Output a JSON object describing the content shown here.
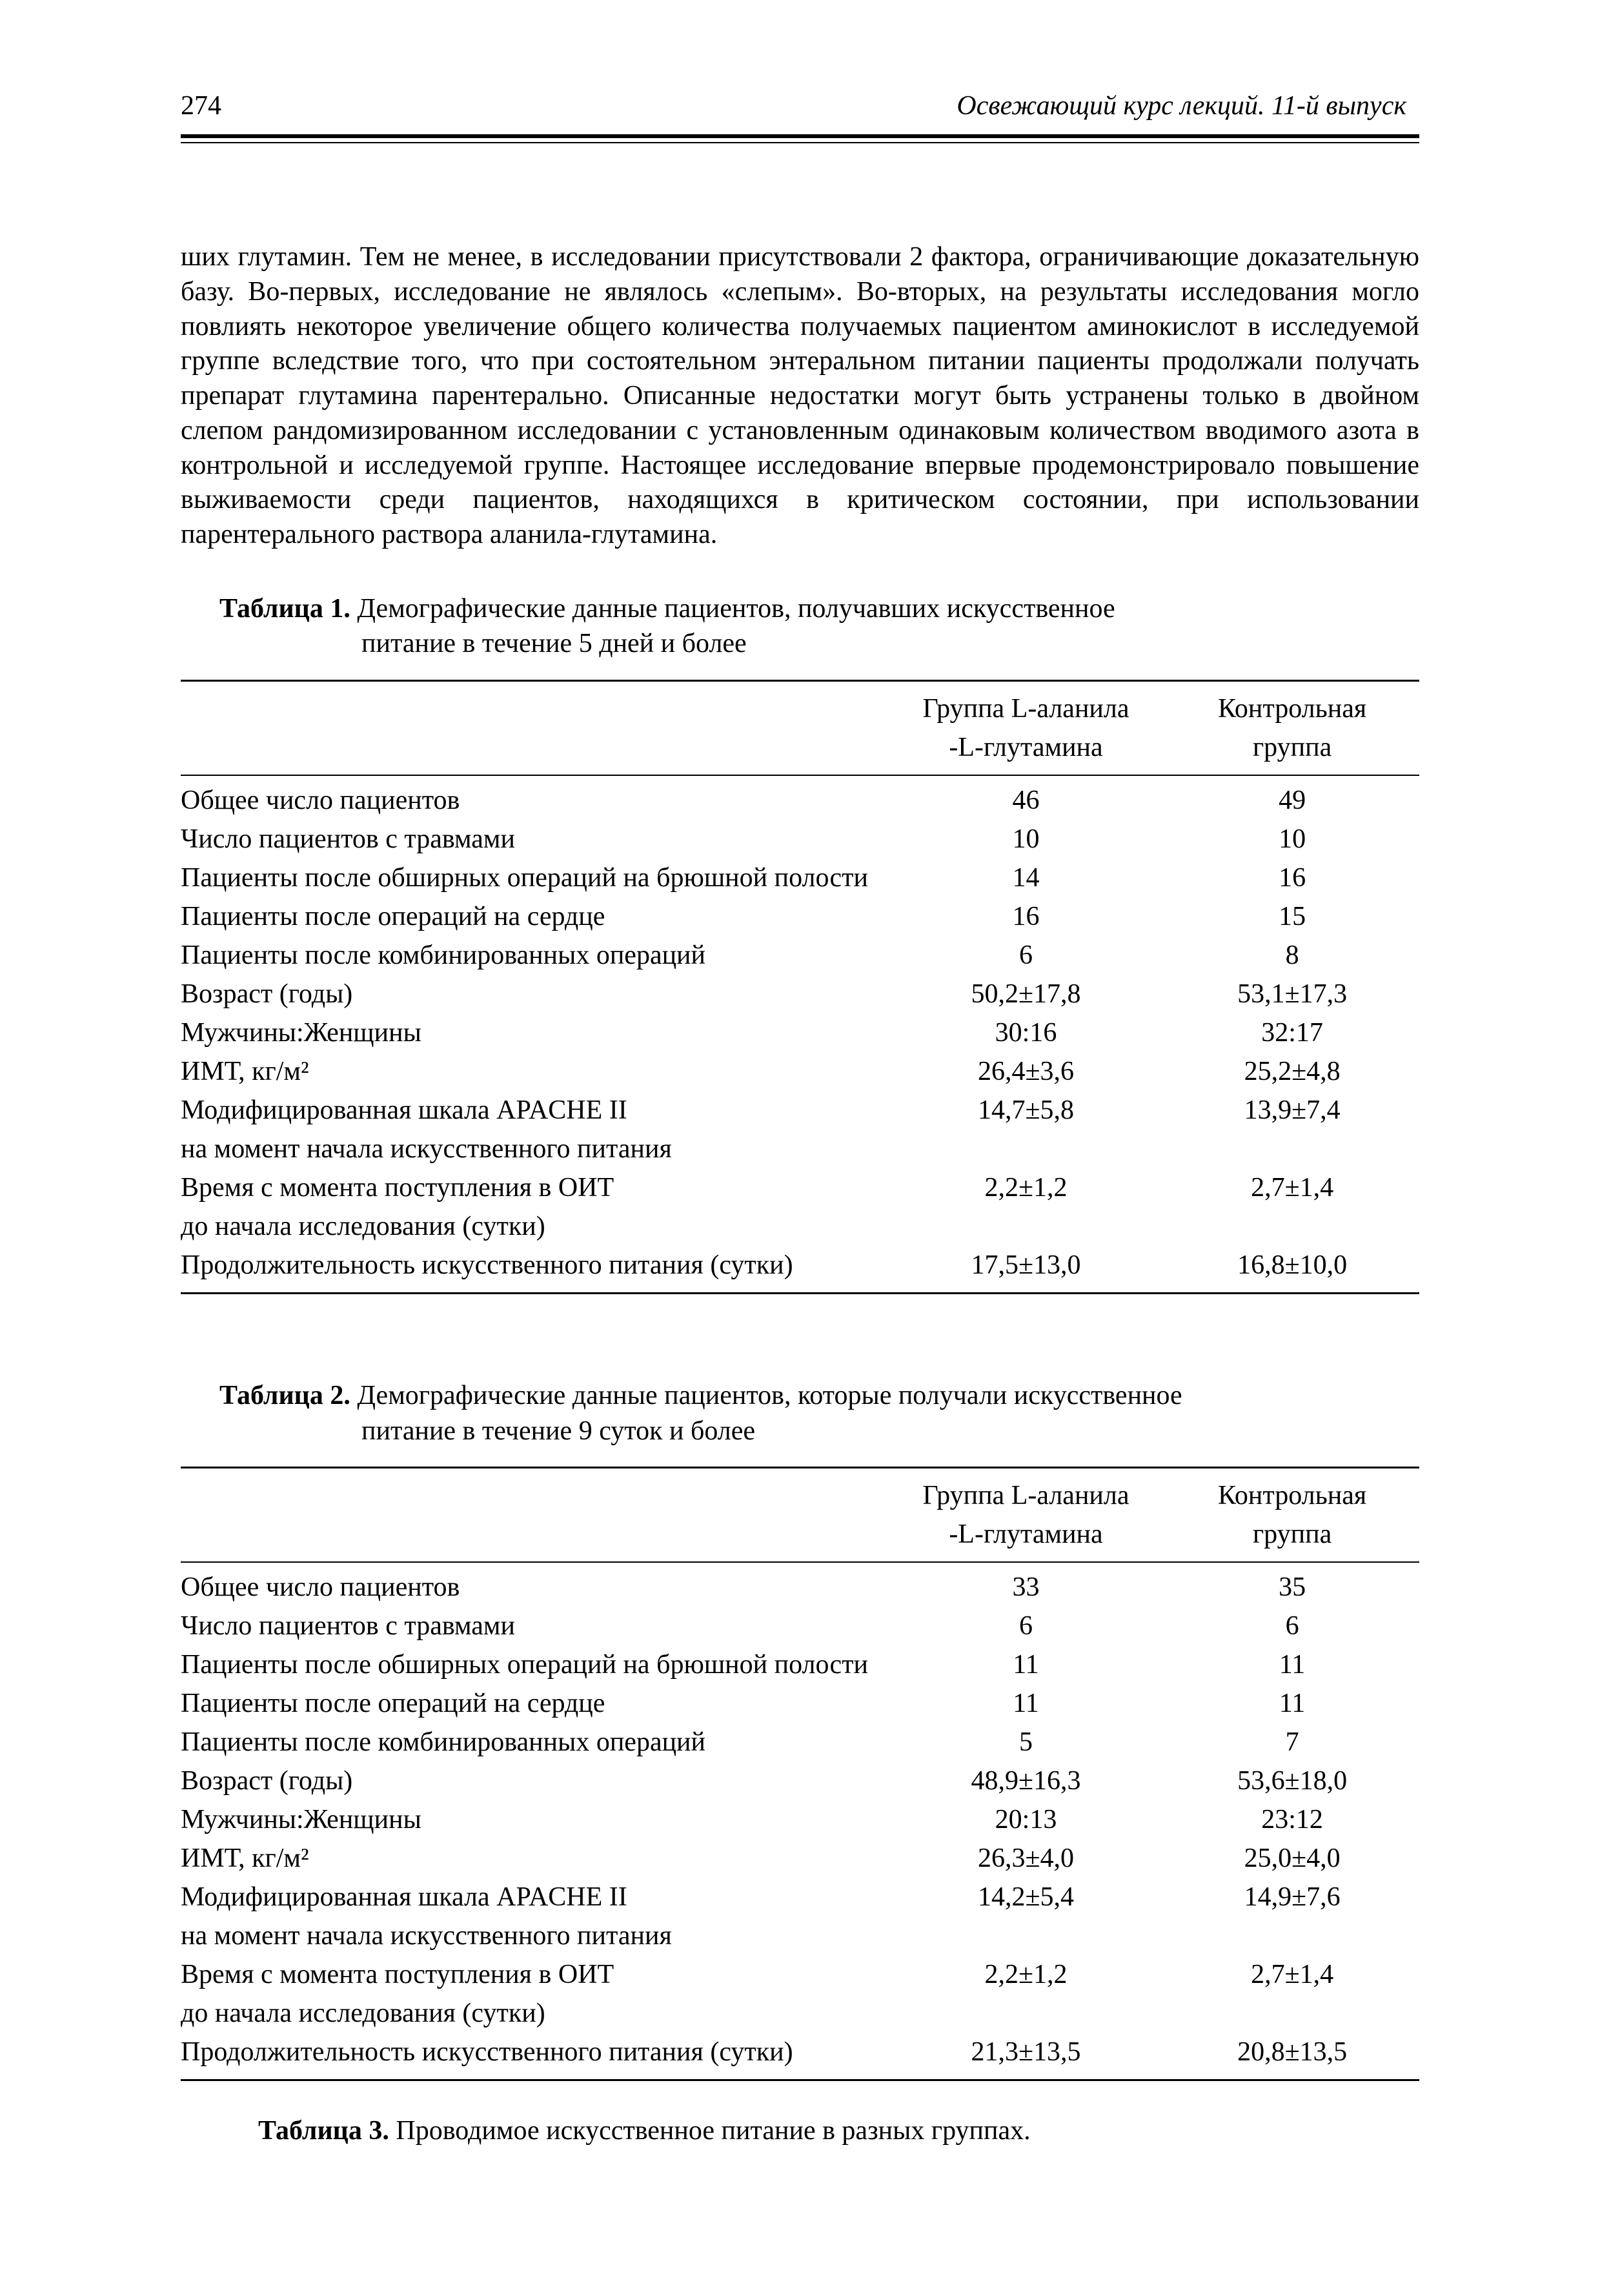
{
  "header": {
    "page_number": "274",
    "book_title": "Освежающий курс лекций.  11-й выпуск"
  },
  "paragraph": "ших глутамин. Тем не менее, в исследовании присутствовали 2 фактора, ограничивающие доказательную базу. Во-первых, исследование не являлось «слепым». Во-вторых, на результаты исследования могло повлиять некоторое увеличение общего количества получаемых пациентом аминокислот в исследуемой группе вследствие того, что при состоятельном энтеральном питании пациенты продолжали получать препарат глутамина парентерально. Описанные недостатки могут быть устранены только в двойном слепом рандомизированном исследовании с установленным одинаковым количеством вводимого азота в контрольной и исследуемой группе. Настоящее исследование впервые продемонстрировало повышение выживаемости среди пациентов, находящихся в критическом состоянии, при использовании парентерального раствора аланила-глутамина.",
  "table1": {
    "caption_bold": "Таблица 1.",
    "caption_rest": " Демографические данные пациентов, получавших искусственное",
    "caption_line2": "питание в течение 5 дней и более",
    "col_header1": "Группа L-аланила",
    "col_header1b": "-L-глутамина",
    "col_header2": "Контрольная",
    "col_header2b": "группа",
    "rows": [
      {
        "label": "Общее число пациентов",
        "v1": "46",
        "v2": "49"
      },
      {
        "label": "Число пациентов с травмами",
        "v1": "10",
        "v2": "10"
      },
      {
        "label": "Пациенты после обширных операций на брюшной полости",
        "v1": "14",
        "v2": "16"
      },
      {
        "label": "Пациенты после операций на сердце",
        "v1": "16",
        "v2": "15"
      },
      {
        "label": "Пациенты после комбинированных операций",
        "v1": "6",
        "v2": "8"
      },
      {
        "label": "Возраст (годы)",
        "v1": "50,2±17,8",
        "v2": "53,1±17,3"
      },
      {
        "label": "Мужчины:Женщины",
        "v1": "30:16",
        "v2": "32:17"
      },
      {
        "label": "ИМТ, кг/м²",
        "v1": "26,4±3,6",
        "v2": "25,2±4,8"
      },
      {
        "label": "Модифицированная шкала APACHE II",
        "v1": "14,7±5,8",
        "v2": "13,9±7,4"
      },
      {
        "label": "на момент начала искусственного питания",
        "v1": "",
        "v2": ""
      },
      {
        "label": "Время с момента поступления в ОИТ",
        "v1": "2,2±1,2",
        "v2": "2,7±1,4"
      },
      {
        "label": "до начала исследования (сутки)",
        "v1": "",
        "v2": ""
      },
      {
        "label": "Продолжительность искусственного питания (сутки)",
        "v1": "17,5±13,0",
        "v2": "16,8±10,0"
      }
    ]
  },
  "table2": {
    "caption_bold": "Таблица 2.",
    "caption_rest": " Демографические данные пациентов, которые получали искусственное",
    "caption_line2": "питание в течение 9 суток и более",
    "col_header1": "Группа L-аланила",
    "col_header1b": "-L-глутамина",
    "col_header2": "Контрольная",
    "col_header2b": "группа",
    "rows": [
      {
        "label": "Общее число пациентов",
        "v1": "33",
        "v2": "35"
      },
      {
        "label": "Число пациентов с травмами",
        "v1": "6",
        "v2": "6"
      },
      {
        "label": "Пациенты после обширных операций на брюшной полости",
        "v1": "11",
        "v2": "11"
      },
      {
        "label": "Пациенты после операций на сердце",
        "v1": "11",
        "v2": "11"
      },
      {
        "label": "Пациенты после комбинированных операций",
        "v1": "5",
        "v2": "7"
      },
      {
        "label": "Возраст (годы)",
        "v1": "48,9±16,3",
        "v2": "53,6±18,0"
      },
      {
        "label": "Мужчины:Женщины",
        "v1": "20:13",
        "v2": "23:12"
      },
      {
        "label": "ИМТ, кг/м²",
        "v1": "26,3±4,0",
        "v2": "25,0±4,0"
      },
      {
        "label": "Модифицированная шкала APACHE II",
        "v1": "14,2±5,4",
        "v2": "14,9±7,6"
      },
      {
        "label": "на момент начала искусственного питания",
        "v1": "",
        "v2": ""
      },
      {
        "label": "Время с момента поступления в ОИТ",
        "v1": "2,2±1,2",
        "v2": "2,7±1,4"
      },
      {
        "label": "до начала исследования (сутки)",
        "v1": "",
        "v2": ""
      },
      {
        "label": "Продолжительность искусственного питания (сутки)",
        "v1": "21,3±13,5",
        "v2": "20,8±13,5"
      }
    ]
  },
  "table3": {
    "caption_bold": "Таблица 3.",
    "caption_rest": " Проводимое искусственное питание в разных группах."
  }
}
